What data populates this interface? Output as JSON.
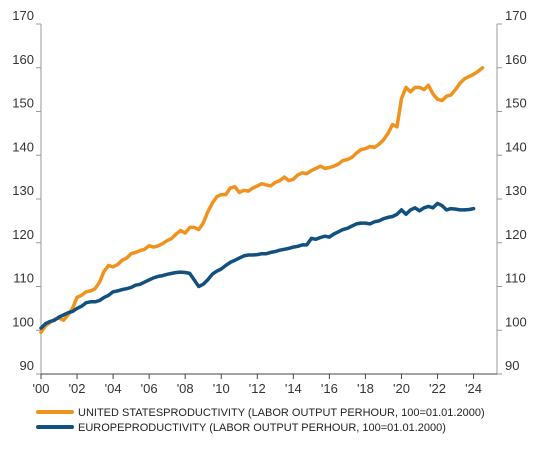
{
  "chart_data": {
    "type": "line",
    "x_unit": "year",
    "xlim": [
      2000,
      2025.3
    ],
    "ylim": [
      90,
      170
    ],
    "y_ticks": [
      90,
      100,
      110,
      120,
      130,
      140,
      150,
      160,
      170
    ],
    "x_ticks": [
      {
        "year": 2000,
        "label": "'00"
      },
      {
        "year": 2002,
        "label": "'02"
      },
      {
        "year": 2004,
        "label": "'04"
      },
      {
        "year": 2006,
        "label": "'06"
      },
      {
        "year": 2008,
        "label": "'08"
      },
      {
        "year": 2010,
        "label": "'10"
      },
      {
        "year": 2012,
        "label": "'12"
      },
      {
        "year": 2014,
        "label": "'14"
      },
      {
        "year": 2016,
        "label": "'16"
      },
      {
        "year": 2018,
        "label": "'18"
      },
      {
        "year": 2020,
        "label": "'20"
      },
      {
        "year": 2022,
        "label": "'22"
      },
      {
        "year": 2024,
        "label": "'24"
      }
    ],
    "grid": false,
    "axes": "left and right",
    "legend_position": "bottom-left",
    "series": [
      {
        "name": "UNITED STATESPRODUCTIVITY (LABOR OUTPUT PERHOUR, 100=01.01.2000)",
        "color": "#f0921e",
        "points": [
          [
            2000.0,
            99.5
          ],
          [
            2000.25,
            101.0
          ],
          [
            2000.5,
            101.8
          ],
          [
            2000.75,
            102.5
          ],
          [
            2001.0,
            102.8
          ],
          [
            2001.25,
            102.3
          ],
          [
            2001.5,
            103.5
          ],
          [
            2001.75,
            105.0
          ],
          [
            2002.0,
            107.5
          ],
          [
            2002.25,
            108.0
          ],
          [
            2002.5,
            108.8
          ],
          [
            2002.75,
            109.0
          ],
          [
            2003.0,
            109.5
          ],
          [
            2003.25,
            111.0
          ],
          [
            2003.5,
            113.5
          ],
          [
            2003.75,
            114.8
          ],
          [
            2004.0,
            114.5
          ],
          [
            2004.25,
            115.0
          ],
          [
            2004.5,
            116.0
          ],
          [
            2004.75,
            116.5
          ],
          [
            2005.0,
            117.5
          ],
          [
            2005.25,
            117.8
          ],
          [
            2005.5,
            118.2
          ],
          [
            2005.75,
            118.5
          ],
          [
            2006.0,
            119.3
          ],
          [
            2006.25,
            119.0
          ],
          [
            2006.5,
            119.3
          ],
          [
            2006.75,
            119.8
          ],
          [
            2007.0,
            120.5
          ],
          [
            2007.25,
            121.0
          ],
          [
            2007.5,
            122.0
          ],
          [
            2007.75,
            122.8
          ],
          [
            2008.0,
            122.2
          ],
          [
            2008.25,
            123.5
          ],
          [
            2008.5,
            123.5
          ],
          [
            2008.75,
            123.0
          ],
          [
            2009.0,
            124.5
          ],
          [
            2009.25,
            127.0
          ],
          [
            2009.5,
            129.0
          ],
          [
            2009.75,
            130.5
          ],
          [
            2010.0,
            131.0
          ],
          [
            2010.25,
            131.0
          ],
          [
            2010.5,
            132.5
          ],
          [
            2010.75,
            132.8
          ],
          [
            2011.0,
            131.5
          ],
          [
            2011.25,
            132.0
          ],
          [
            2011.5,
            131.8
          ],
          [
            2011.75,
            132.5
          ],
          [
            2012.0,
            133.0
          ],
          [
            2012.25,
            133.5
          ],
          [
            2012.5,
            133.2
          ],
          [
            2012.75,
            133.0
          ],
          [
            2013.0,
            133.8
          ],
          [
            2013.25,
            134.2
          ],
          [
            2013.5,
            135.0
          ],
          [
            2013.75,
            134.2
          ],
          [
            2014.0,
            134.5
          ],
          [
            2014.25,
            135.5
          ],
          [
            2014.5,
            136.0
          ],
          [
            2014.75,
            135.8
          ],
          [
            2015.0,
            136.5
          ],
          [
            2015.25,
            137.0
          ],
          [
            2015.5,
            137.5
          ],
          [
            2015.75,
            137.0
          ],
          [
            2016.0,
            137.2
          ],
          [
            2016.25,
            137.5
          ],
          [
            2016.5,
            138.0
          ],
          [
            2016.75,
            138.8
          ],
          [
            2017.0,
            139.0
          ],
          [
            2017.25,
            139.5
          ],
          [
            2017.5,
            140.5
          ],
          [
            2017.75,
            141.3
          ],
          [
            2018.0,
            141.5
          ],
          [
            2018.25,
            142.0
          ],
          [
            2018.5,
            141.8
          ],
          [
            2018.75,
            142.5
          ],
          [
            2019.0,
            143.5
          ],
          [
            2019.25,
            145.0
          ],
          [
            2019.5,
            147.0
          ],
          [
            2019.75,
            146.5
          ],
          [
            2020.0,
            153.0
          ],
          [
            2020.25,
            155.5
          ],
          [
            2020.5,
            154.5
          ],
          [
            2020.75,
            155.5
          ],
          [
            2021.0,
            155.5
          ],
          [
            2021.25,
            155.0
          ],
          [
            2021.5,
            156.0
          ],
          [
            2021.75,
            154.0
          ],
          [
            2022.0,
            152.8
          ],
          [
            2022.25,
            152.5
          ],
          [
            2022.5,
            153.5
          ],
          [
            2022.75,
            153.8
          ],
          [
            2023.0,
            155.0
          ],
          [
            2023.25,
            156.5
          ],
          [
            2023.5,
            157.5
          ],
          [
            2023.75,
            158.0
          ],
          [
            2024.0,
            158.5
          ],
          [
            2024.25,
            159.2
          ],
          [
            2024.5,
            160.0
          ]
        ]
      },
      {
        "name": "EUROPEPRODUCTIVITY (LABOR OUTPUT PERHOUR, 100=01.01.2000)",
        "color": "#11507f",
        "points": [
          [
            2000.0,
            100.5
          ],
          [
            2000.25,
            101.5
          ],
          [
            2000.5,
            102.0
          ],
          [
            2000.75,
            102.3
          ],
          [
            2001.0,
            103.0
          ],
          [
            2001.25,
            103.5
          ],
          [
            2001.5,
            104.0
          ],
          [
            2001.75,
            104.3
          ],
          [
            2002.0,
            105.0
          ],
          [
            2002.25,
            105.5
          ],
          [
            2002.5,
            106.3
          ],
          [
            2002.75,
            106.5
          ],
          [
            2003.0,
            106.5
          ],
          [
            2003.25,
            106.8
          ],
          [
            2003.5,
            107.5
          ],
          [
            2003.75,
            108.0
          ],
          [
            2004.0,
            108.8
          ],
          [
            2004.25,
            109.0
          ],
          [
            2004.5,
            109.3
          ],
          [
            2004.75,
            109.5
          ],
          [
            2005.0,
            109.8
          ],
          [
            2005.25,
            110.3
          ],
          [
            2005.5,
            110.5
          ],
          [
            2005.75,
            111.0
          ],
          [
            2006.0,
            111.5
          ],
          [
            2006.25,
            112.0
          ],
          [
            2006.5,
            112.3
          ],
          [
            2006.75,
            112.5
          ],
          [
            2007.0,
            112.8
          ],
          [
            2007.25,
            113.0
          ],
          [
            2007.5,
            113.2
          ],
          [
            2007.75,
            113.3
          ],
          [
            2008.0,
            113.2
          ],
          [
            2008.25,
            113.0
          ],
          [
            2008.5,
            111.5
          ],
          [
            2008.75,
            110.0
          ],
          [
            2009.0,
            110.5
          ],
          [
            2009.25,
            111.5
          ],
          [
            2009.5,
            112.8
          ],
          [
            2009.75,
            113.5
          ],
          [
            2010.0,
            114.0
          ],
          [
            2010.25,
            114.8
          ],
          [
            2010.5,
            115.5
          ],
          [
            2010.75,
            116.0
          ],
          [
            2011.0,
            116.5
          ],
          [
            2011.25,
            117.0
          ],
          [
            2011.5,
            117.2
          ],
          [
            2011.75,
            117.2
          ],
          [
            2012.0,
            117.3
          ],
          [
            2012.25,
            117.5
          ],
          [
            2012.5,
            117.5
          ],
          [
            2012.75,
            117.8
          ],
          [
            2013.0,
            118.0
          ],
          [
            2013.25,
            118.3
          ],
          [
            2013.5,
            118.5
          ],
          [
            2013.75,
            118.7
          ],
          [
            2014.0,
            119.0
          ],
          [
            2014.25,
            119.2
          ],
          [
            2014.5,
            119.5
          ],
          [
            2014.75,
            119.5
          ],
          [
            2015.0,
            121.0
          ],
          [
            2015.25,
            120.8
          ],
          [
            2015.5,
            121.2
          ],
          [
            2015.75,
            121.5
          ],
          [
            2016.0,
            121.3
          ],
          [
            2016.25,
            122.0
          ],
          [
            2016.5,
            122.5
          ],
          [
            2016.75,
            123.0
          ],
          [
            2017.0,
            123.3
          ],
          [
            2017.25,
            123.8
          ],
          [
            2017.5,
            124.3
          ],
          [
            2017.75,
            124.5
          ],
          [
            2018.0,
            124.5
          ],
          [
            2018.25,
            124.3
          ],
          [
            2018.5,
            124.8
          ],
          [
            2018.75,
            125.0
          ],
          [
            2019.0,
            125.5
          ],
          [
            2019.25,
            125.8
          ],
          [
            2019.5,
            126.0
          ],
          [
            2019.75,
            126.5
          ],
          [
            2020.0,
            127.5
          ],
          [
            2020.25,
            126.5
          ],
          [
            2020.5,
            127.5
          ],
          [
            2020.75,
            128.0
          ],
          [
            2021.0,
            127.3
          ],
          [
            2021.25,
            128.0
          ],
          [
            2021.5,
            128.3
          ],
          [
            2021.75,
            128.0
          ],
          [
            2022.0,
            129.0
          ],
          [
            2022.25,
            128.5
          ],
          [
            2022.5,
            127.5
          ],
          [
            2022.75,
            127.8
          ],
          [
            2023.0,
            127.7
          ],
          [
            2023.25,
            127.5
          ],
          [
            2023.5,
            127.5
          ],
          [
            2023.75,
            127.6
          ],
          [
            2024.0,
            127.8
          ]
        ]
      }
    ]
  }
}
